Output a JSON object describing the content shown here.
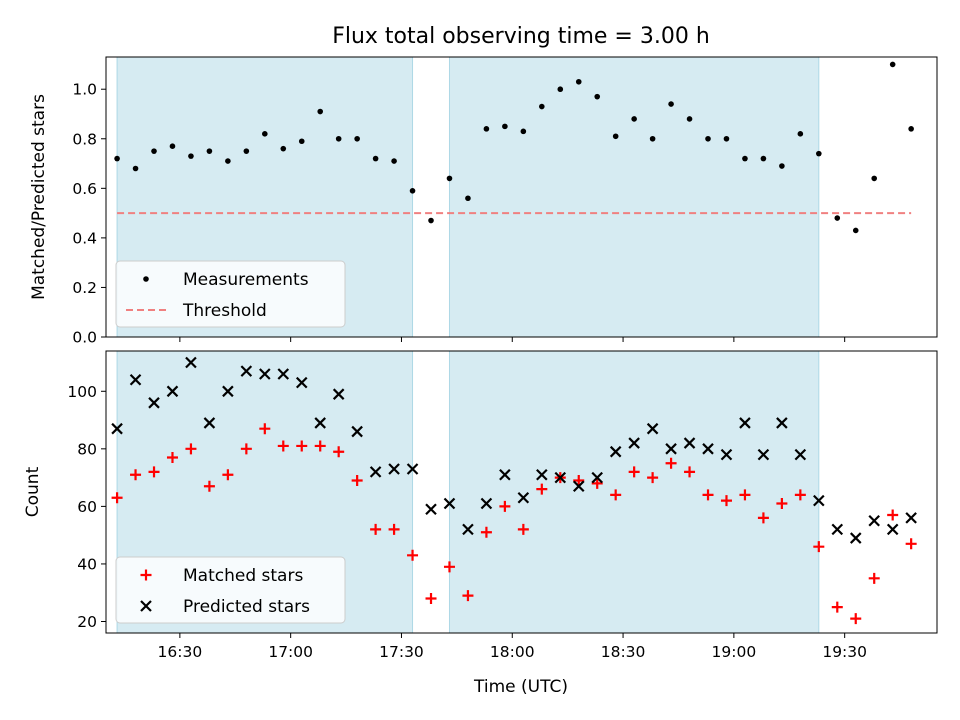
{
  "chart_data": {
    "title": "Flux total observing time = 3.00 h",
    "type": "scatter",
    "highlight_regions": [
      {
        "start": "16:13",
        "end": "17:33",
        "color": "#add8e6"
      },
      {
        "start": "17:43",
        "end": "19:23",
        "color": "#add8e6"
      }
    ],
    "x_time": [
      "16:13",
      "16:18",
      "16:23",
      "16:28",
      "16:33",
      "16:38",
      "16:43",
      "16:48",
      "16:53",
      "16:58",
      "17:03",
      "17:08",
      "17:13",
      "17:18",
      "17:23",
      "17:28",
      "17:33",
      "17:38",
      "17:43",
      "17:48",
      "17:53",
      "17:58",
      "18:03",
      "18:08",
      "18:13",
      "18:18",
      "18:23",
      "18:28",
      "18:33",
      "18:38",
      "18:43",
      "18:48",
      "18:53",
      "18:58",
      "19:03",
      "19:08",
      "19:13",
      "19:18",
      "19:23",
      "19:28",
      "19:33",
      "19:38",
      "19:43",
      "19:48"
    ],
    "panels": [
      {
        "ylabel": "Matched/Predicted stars",
        "ylim": [
          0,
          1.13
        ],
        "yticks": [
          "0.0",
          "0.2",
          "0.4",
          "0.6",
          "0.8",
          "1.0"
        ],
        "threshold": {
          "name": "Threshold",
          "value": 0.5,
          "color": "#f08080"
        },
        "series": [
          {
            "name": "Measurements",
            "marker": "dot",
            "color": "#000000",
            "values": [
              0.72,
              0.68,
              0.75,
              0.77,
              0.73,
              0.75,
              0.71,
              0.75,
              0.82,
              0.76,
              0.79,
              0.91,
              0.8,
              0.8,
              0.72,
              0.71,
              0.59,
              0.47,
              0.64,
              0.56,
              0.84,
              0.85,
              0.83,
              0.93,
              1.0,
              1.03,
              0.97,
              0.81,
              0.88,
              0.8,
              0.94,
              0.88,
              0.8,
              0.8,
              0.72,
              0.72,
              0.69,
              0.82,
              0.74,
              0.48,
              0.43,
              0.64,
              1.1,
              0.84
            ]
          }
        ],
        "legend": {
          "placement": "lower-left",
          "entries": [
            "Measurements",
            "Threshold"
          ]
        }
      },
      {
        "ylabel": "Count",
        "ylim": [
          16,
          114
        ],
        "yticks": [
          "20",
          "40",
          "60",
          "80",
          "100"
        ],
        "series": [
          {
            "name": "Matched stars",
            "marker": "plus",
            "color": "#ff0000",
            "values": [
              63,
              71,
              72,
              77,
              80,
              67,
              71,
              80,
              87,
              81,
              81,
              81,
              79,
              69,
              52,
              52,
              43,
              28,
              39,
              29,
              51,
              60,
              52,
              66,
              70,
              69,
              68,
              64,
              72,
              70,
              75,
              72,
              64,
              62,
              64,
              56,
              61,
              64,
              46,
              25,
              21,
              35,
              57,
              47
            ]
          },
          {
            "name": "Predicted stars",
            "marker": "x",
            "color": "#000000",
            "values": [
              87,
              104,
              96,
              100,
              110,
              89,
              100,
              107,
              106,
              106,
              103,
              89,
              99,
              86,
              72,
              73,
              73,
              59,
              61,
              52,
              61,
              71,
              63,
              71,
              70,
              67,
              70,
              79,
              82,
              87,
              80,
              82,
              80,
              78,
              89,
              78,
              89,
              78,
              62,
              52,
              49,
              55,
              52,
              56
            ]
          }
        ],
        "legend": {
          "placement": "lower-left",
          "entries": [
            "Matched stars",
            "Predicted stars"
          ]
        }
      }
    ],
    "xlabel": "Time (UTC)",
    "xlim": [
      "16:10",
      "19:55"
    ],
    "xticks": [
      "16:30",
      "17:00",
      "17:30",
      "18:00",
      "18:30",
      "19:00",
      "19:30"
    ]
  }
}
